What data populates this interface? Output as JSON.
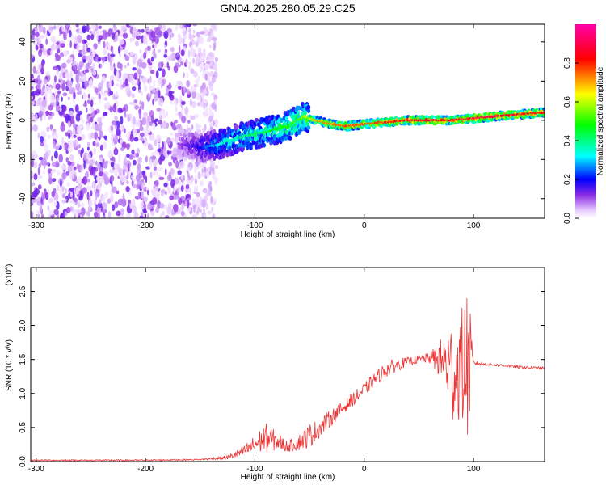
{
  "figure": {
    "title": "GN04.2025.280.05.29.C25"
  },
  "chart_data": [
    {
      "type": "heatmap",
      "xlabel": "Height of straight line (km)",
      "ylabel": "Frequency (Hz)",
      "xlim": [
        -305,
        165
      ],
      "ylim": [
        -50,
        49
      ],
      "xticks": [
        -300,
        -200,
        -100,
        0,
        100
      ],
      "yticks": [
        -40,
        -20,
        0,
        20,
        40
      ],
      "colorbar": {
        "label": "Normalized spectral amplitude",
        "range": [
          0,
          1
        ],
        "ticks": [
          "0.0",
          "0.2",
          "0.4",
          "0.6",
          "0.8"
        ],
        "tick_values": [
          0,
          0.2,
          0.4,
          0.6,
          0.8
        ],
        "colormap": "rainbow (white-violet-blue-cyan-green-yellow-red-magenta)"
      },
      "signal_ridge": {
        "x": [
          -170,
          -150,
          -130,
          -110,
          -90,
          -70,
          -55,
          -45,
          -30,
          -15,
          0,
          20,
          40,
          60,
          80,
          100,
          120,
          140,
          165
        ],
        "frequency": [
          -12,
          -14,
          -12,
          -8,
          -6,
          -3,
          2,
          0,
          -2,
          -3,
          -2,
          -1,
          0,
          0,
          0,
          1,
          2,
          3,
          4
        ],
        "amplitude": [
          0.1,
          0.2,
          0.35,
          0.4,
          0.45,
          0.5,
          0.55,
          0.7,
          0.75,
          0.8,
          0.75,
          0.8,
          0.85,
          0.9,
          0.85,
          0.9,
          0.9,
          0.85,
          0.8
        ]
      },
      "noise_region": {
        "x_range": [
          -305,
          -150
        ],
        "amplitude": [
          0.02,
          0.15
        ]
      }
    },
    {
      "type": "line",
      "xlabel": "Height of straight line (km)",
      "ylabel": "SNR (10 * v/v)",
      "y_multiplier": "(x10",
      "y_multiplier_exp": "4",
      "y_multiplier_close": ")",
      "xlim": [
        -305,
        165
      ],
      "ylim": [
        0,
        2.85
      ],
      "xticks": [
        -300,
        -200,
        -100,
        0,
        100
      ],
      "yticks": [
        "0.0",
        "0.5",
        "1.0",
        "1.5",
        "2.0",
        "2.5"
      ],
      "ytick_values": [
        0,
        0.5,
        1.0,
        1.5,
        2.0,
        2.5
      ],
      "series": [
        {
          "color": "#ee3333",
          "envelope": {
            "x": [
              -305,
              -200,
              -150,
              -125,
              -110,
              -100,
              -90,
              -80,
              -70,
              -60,
              -50,
              -40,
              -30,
              -20,
              -10,
              0,
              10,
              20,
              30,
              40,
              50,
              60,
              70,
              75,
              80,
              85,
              90,
              95,
              100,
              110,
              120,
              130,
              140,
              150,
              165
            ],
            "mean": [
              0.02,
              0.02,
              0.03,
              0.06,
              0.15,
              0.25,
              0.35,
              0.3,
              0.22,
              0.28,
              0.38,
              0.5,
              0.65,
              0.78,
              0.92,
              1.05,
              1.22,
              1.35,
              1.42,
              1.47,
              1.5,
              1.52,
              1.5,
              1.45,
              1.3,
              1.35,
              1.4,
              1.45,
              1.45,
              1.43,
              1.42,
              1.41,
              1.39,
              1.38,
              1.37
            ],
            "amplitude": [
              0.01,
              0.01,
              0.01,
              0.03,
              0.08,
              0.14,
              0.22,
              0.14,
              0.08,
              0.12,
              0.18,
              0.14,
              0.12,
              0.1,
              0.1,
              0.1,
              0.1,
              0.12,
              0.1,
              0.06,
              0.06,
              0.08,
              0.3,
              0.5,
              0.8,
              0.7,
              0.9,
              1.2,
              0.04,
              0.02,
              0.02,
              0.02,
              0.02,
              0.02,
              0.02
            ]
          }
        }
      ]
    }
  ]
}
